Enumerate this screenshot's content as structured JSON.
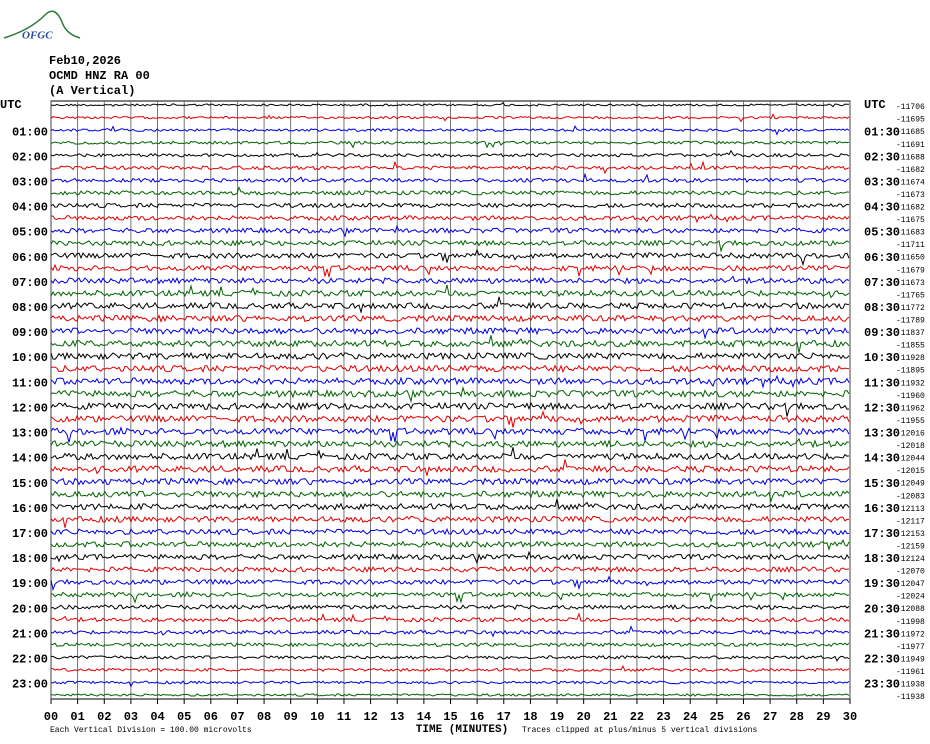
{
  "header": {
    "logo": "OFGC",
    "date": "Feb10,2026",
    "station": "OCMD HNZ RA 00",
    "component": "(A Vertical)"
  },
  "left_labels": [
    "UTC",
    "01:00",
    "02:00",
    "03:00",
    "04:00",
    "05:00",
    "06:00",
    "07:00",
    "08:00",
    "09:00",
    "10:00",
    "11:00",
    "12:00",
    "13:00",
    "14:00",
    "15:00",
    "16:00",
    "17:00",
    "18:00",
    "19:00",
    "20:00",
    "21:00",
    "22:00",
    "23:00"
  ],
  "right_labels": [
    "UTC",
    "01:30",
    "02:30",
    "03:30",
    "04:30",
    "05:30",
    "06:30",
    "07:30",
    "08:30",
    "09:30",
    "10:30",
    "11:30",
    "12:30",
    "13:30",
    "14:30",
    "15:30",
    "16:30",
    "17:30",
    "18:30",
    "19:30",
    "20:30",
    "21:30",
    "22:30",
    "23:30"
  ],
  "trace_offsets": [
    "-11706",
    "-11695",
    "-11685",
    "-11691",
    "-11688",
    "-11682",
    "-11674",
    "-11673",
    "-11682",
    "-11675",
    "-11683",
    "-11711",
    "-11650",
    "-11679",
    "-11673",
    "-11765",
    "-11772",
    "-11789",
    "-11837",
    "-11855",
    "-11928",
    "-11895",
    "-11932",
    "-11960",
    "-11962",
    "-11955",
    "-12016",
    "-12018",
    "-12044",
    "-12015",
    "-12049",
    "-12083",
    "-12113",
    "-12117",
    "-12153",
    "-12159",
    "-12124",
    "-12070",
    "-12047",
    "-12024",
    "-12088",
    "-11998",
    "-11972",
    "-11977",
    "-11949",
    "-11961",
    "-11938",
    "-11938"
  ],
  "x_ticks": [
    "00",
    "01",
    "02",
    "03",
    "04",
    "05",
    "06",
    "07",
    "08",
    "09",
    "10",
    "11",
    "12",
    "13",
    "14",
    "15",
    "16",
    "17",
    "18",
    "19",
    "20",
    "21",
    "22",
    "23",
    "24",
    "25",
    "26",
    "27",
    "28",
    "29",
    "30"
  ],
  "footer": {
    "scale": "Each Vertical Division =  100.00 microvolts",
    "x_label": "TIME (MINUTES)",
    "clip": "Traces clipped at plus/minus 5 vertical divisions"
  }
}
